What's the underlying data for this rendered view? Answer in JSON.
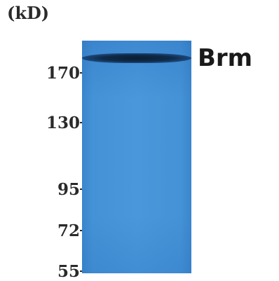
{
  "unit_label": "(kD)",
  "markers": [
    {
      "label": "170",
      "kd": 170
    },
    {
      "label": "130",
      "kd": 130
    },
    {
      "label": "95",
      "kd": 95
    },
    {
      "label": "72",
      "kd": 72
    },
    {
      "label": "55",
      "kd": 55
    }
  ],
  "protein_label": "Brm",
  "colors": {
    "membrane": "#4592d6",
    "band": "#0f2a48",
    "text": "#2a2a2a"
  }
}
